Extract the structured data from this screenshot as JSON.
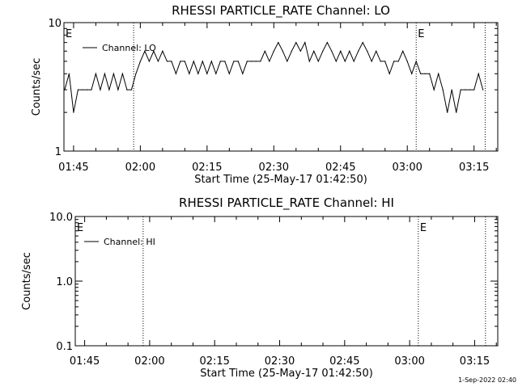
{
  "chart_data": [
    {
      "type": "line",
      "title": "RHESSI PARTICLE_RATE Channel: LO",
      "xlabel": "Start Time (25-May-17 01:42:50)",
      "ylabel": "Counts/sec",
      "yscale": "log",
      "ylim": [
        1,
        10
      ],
      "yticks": [
        1,
        10
      ],
      "ytick_labels": [
        "1",
        "10"
      ],
      "xlim": [
        "01:42:50",
        "03:20:20"
      ],
      "xticks": [
        "01:45",
        "02:00",
        "02:15",
        "02:30",
        "02:45",
        "03:00",
        "03:15"
      ],
      "series": [
        {
          "name": "Channel: LO",
          "color": "#000000",
          "points": [
            [
              "01:43",
              3
            ],
            [
              "01:44",
              4
            ],
            [
              "01:45",
              2
            ],
            [
              "01:46",
              3
            ],
            [
              "01:47",
              3
            ],
            [
              "01:48",
              3
            ],
            [
              "01:49",
              3
            ],
            [
              "01:50",
              4
            ],
            [
              "01:51",
              3
            ],
            [
              "01:52",
              4
            ],
            [
              "01:53",
              3
            ],
            [
              "01:54",
              4
            ],
            [
              "01:55",
              3
            ],
            [
              "01:56",
              4
            ],
            [
              "01:57",
              3
            ],
            [
              "01:58",
              3
            ],
            [
              "01:59",
              4
            ],
            [
              "02:00",
              5
            ],
            [
              "02:01",
              6
            ],
            [
              "02:02",
              5
            ],
            [
              "02:03",
              6
            ],
            [
              "02:04",
              5
            ],
            [
              "02:05",
              6
            ],
            [
              "02:06",
              5
            ],
            [
              "02:07",
              5
            ],
            [
              "02:08",
              4
            ],
            [
              "02:09",
              5
            ],
            [
              "02:10",
              5
            ],
            [
              "02:11",
              4
            ],
            [
              "02:12",
              5
            ],
            [
              "02:13",
              4
            ],
            [
              "02:14",
              5
            ],
            [
              "02:15",
              4
            ],
            [
              "02:16",
              5
            ],
            [
              "02:17",
              4
            ],
            [
              "02:18",
              5
            ],
            [
              "02:19",
              5
            ],
            [
              "02:20",
              4
            ],
            [
              "02:21",
              5
            ],
            [
              "02:22",
              5
            ],
            [
              "02:23",
              4
            ],
            [
              "02:24",
              5
            ],
            [
              "02:25",
              5
            ],
            [
              "02:26",
              5
            ],
            [
              "02:27",
              5
            ],
            [
              "02:28",
              6
            ],
            [
              "02:29",
              5
            ],
            [
              "02:30",
              6
            ],
            [
              "02:31",
              7
            ],
            [
              "02:32",
              6
            ],
            [
              "02:33",
              5
            ],
            [
              "02:34",
              6
            ],
            [
              "02:35",
              7
            ],
            [
              "02:36",
              6
            ],
            [
              "02:37",
              7
            ],
            [
              "02:38",
              5
            ],
            [
              "02:39",
              6
            ],
            [
              "02:40",
              5
            ],
            [
              "02:41",
              6
            ],
            [
              "02:42",
              7
            ],
            [
              "02:43",
              6
            ],
            [
              "02:44",
              5
            ],
            [
              "02:45",
              6
            ],
            [
              "02:46",
              5
            ],
            [
              "02:47",
              6
            ],
            [
              "02:48",
              5
            ],
            [
              "02:49",
              6
            ],
            [
              "02:50",
              7
            ],
            [
              "02:51",
              6
            ],
            [
              "02:52",
              5
            ],
            [
              "02:53",
              6
            ],
            [
              "02:54",
              5
            ],
            [
              "02:55",
              5
            ],
            [
              "02:56",
              4
            ],
            [
              "02:57",
              5
            ],
            [
              "02:58",
              5
            ],
            [
              "02:59",
              6
            ],
            [
              "03:00",
              5
            ],
            [
              "03:01",
              4
            ],
            [
              "03:02",
              5
            ],
            [
              "03:03",
              4
            ],
            [
              "03:04",
              4
            ],
            [
              "03:05",
              4
            ],
            [
              "03:06",
              3
            ],
            [
              "03:07",
              4
            ],
            [
              "03:08",
              3
            ],
            [
              "03:09",
              2
            ],
            [
              "03:10",
              3
            ],
            [
              "03:11",
              2
            ],
            [
              "03:12",
              3
            ],
            [
              "03:13",
              3
            ],
            [
              "03:14",
              3
            ],
            [
              "03:15",
              3
            ],
            [
              "03:16",
              4
            ],
            [
              "03:17",
              3
            ]
          ]
        }
      ],
      "markers": [
        {
          "time": "01:58:30",
          "label": ""
        },
        {
          "time": "03:02:00",
          "label": "E"
        },
        {
          "time": "03:17:30",
          "label": ""
        }
      ],
      "corner_label": "E",
      "legend": "top-left"
    },
    {
      "type": "line",
      "title": "RHESSI PARTICLE_RATE Channel: HI",
      "xlabel": "Start Time (25-May-17 01:42:50)",
      "ylabel": "Counts/sec",
      "yscale": "log",
      "ylim": [
        0.1,
        10
      ],
      "yticks": [
        0.1,
        1,
        10
      ],
      "ytick_labels": [
        "0.1",
        "1.0",
        "10.0"
      ],
      "xlim": [
        "01:42:50",
        "03:20:20"
      ],
      "xticks": [
        "01:45",
        "02:00",
        "02:15",
        "02:30",
        "02:45",
        "03:00",
        "03:15"
      ],
      "series": [
        {
          "name": "Channel: HI",
          "color": "#000000",
          "points": []
        }
      ],
      "markers": [
        {
          "time": "01:58:30",
          "label": ""
        },
        {
          "time": "03:02:00",
          "label": "E"
        },
        {
          "time": "03:17:30",
          "label": ""
        }
      ],
      "corner_label": "E",
      "legend": "top-left"
    }
  ],
  "footer": {
    "timestamp": "1-Sep-2022 02:40"
  }
}
